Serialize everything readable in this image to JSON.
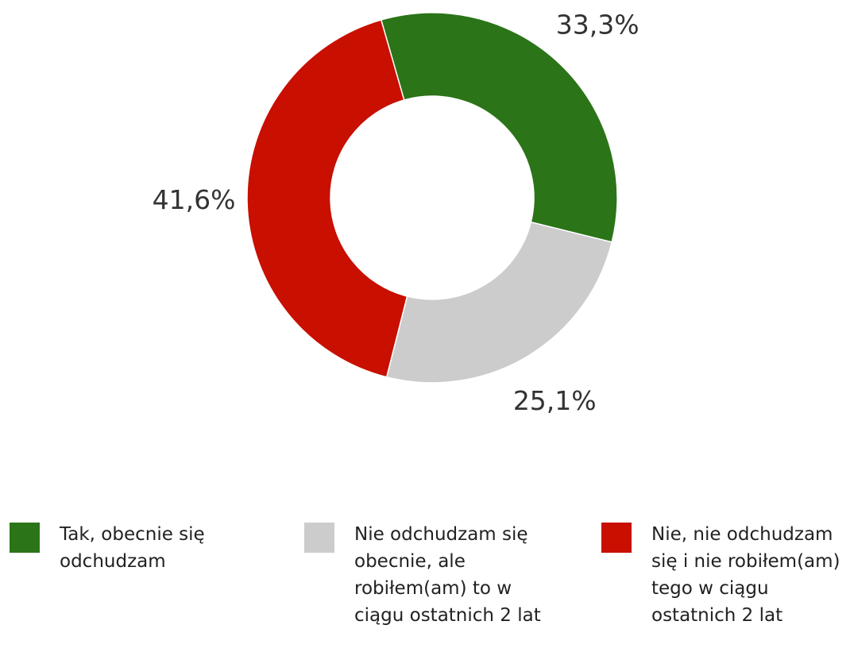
{
  "chart_data": {
    "type": "donut",
    "categories": [
      "Tak, obecnie się odchudzam",
      "Nie odchudzam się obecnie, ale robiłem(am) to w ciągu ostatnich 2 lat",
      "Nie, nie odchudzam się i nie robiłem(am) tego w ciągu ostatnich 2 lat"
    ],
    "values": [
      33.3,
      25.1,
      41.6
    ],
    "value_labels": [
      "33,3%",
      "25,1%",
      "41,6%"
    ],
    "colors": [
      "#2b7418",
      "#cccccc",
      "#c80f00"
    ],
    "legend": "bottom"
  }
}
